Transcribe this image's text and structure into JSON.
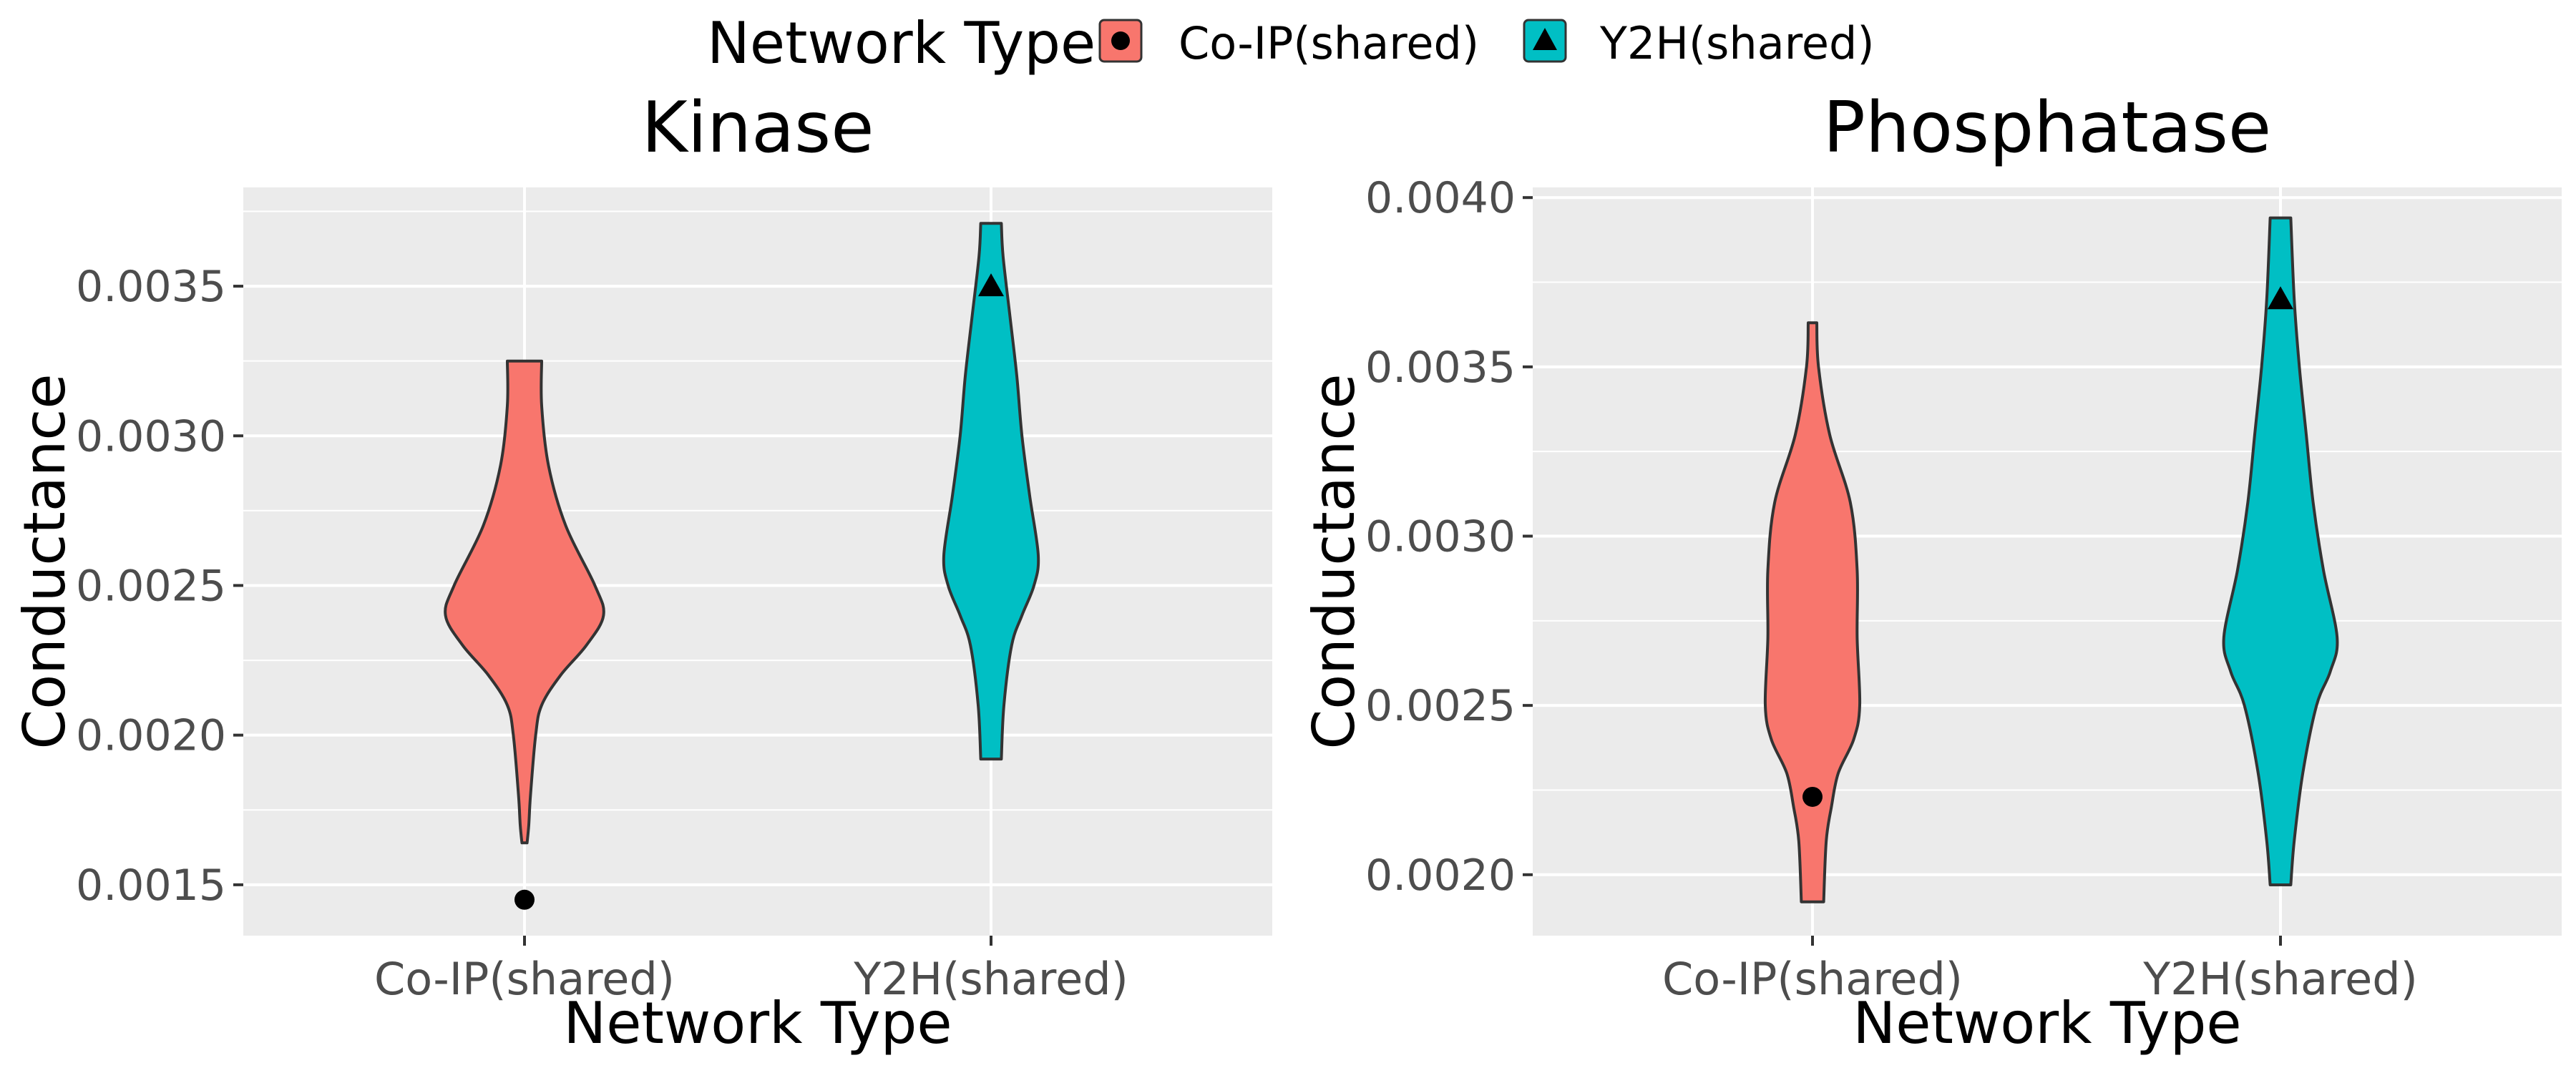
{
  "legend": {
    "title": "Network Type",
    "items": [
      {
        "label": "Co-IP(shared)",
        "fill": "#F8766D",
        "marker": "circle"
      },
      {
        "label": "Y2H(shared)",
        "fill": "#00BFC4",
        "marker": "triangle"
      }
    ]
  },
  "colors": {
    "coip": "#F8766D",
    "y2h": "#00BFC4",
    "panel_bg": "#EBEBEB",
    "grid": "#FFFFFF",
    "outline": "#333333"
  },
  "chart_data": [
    {
      "type": "violin",
      "title": "Kinase",
      "xlabel": "Network Type",
      "ylabel": "Conductance",
      "categories": [
        "Co-IP(shared)",
        "Y2H(shared)"
      ],
      "ylim": [
        0.00133,
        0.00383
      ],
      "yticks": [
        "0.0015",
        "0.0020",
        "0.0025",
        "0.0030",
        "0.0035"
      ],
      "grid": true,
      "series": [
        {
          "category": "Co-IP(shared)",
          "color": "#F8766D",
          "min": 0.00164,
          "max": 0.00325,
          "profile": [
            [
              0.00325,
              0.2
            ],
            [
              0.0031,
              0.2
            ],
            [
              0.0029,
              0.28
            ],
            [
              0.0027,
              0.48
            ],
            [
              0.0025,
              0.82
            ],
            [
              0.0024,
              0.92
            ],
            [
              0.0023,
              0.72
            ],
            [
              0.0022,
              0.42
            ],
            [
              0.0021,
              0.2
            ],
            [
              0.002,
              0.13
            ],
            [
              0.0018,
              0.07
            ],
            [
              0.0017,
              0.05
            ],
            [
              0.00164,
              0.03
            ]
          ],
          "marker": {
            "shape": "circle",
            "value": 0.00145
          }
        },
        {
          "category": "Y2H(shared)",
          "color": "#00BFC4",
          "min": 0.00192,
          "max": 0.00371,
          "profile": [
            [
              0.00371,
              0.12
            ],
            [
              0.0036,
              0.14
            ],
            [
              0.0034,
              0.22
            ],
            [
              0.0032,
              0.3
            ],
            [
              0.003,
              0.36
            ],
            [
              0.0028,
              0.45
            ],
            [
              0.0026,
              0.55
            ],
            [
              0.0025,
              0.5
            ],
            [
              0.0024,
              0.36
            ],
            [
              0.0023,
              0.24
            ],
            [
              0.0021,
              0.15
            ],
            [
              0.00192,
              0.12
            ]
          ],
          "marker": {
            "shape": "triangle",
            "value": 0.0035
          }
        }
      ]
    },
    {
      "type": "violin",
      "title": "Phosphatase",
      "xlabel": "Network Type",
      "ylabel": "Conductance",
      "categories": [
        "Co-IP(shared)",
        "Y2H(shared)"
      ],
      "ylim": [
        0.00182,
        0.00403
      ],
      "yticks": [
        "0.0020",
        "0.0025",
        "0.0030",
        "0.0035",
        "0.0040"
      ],
      "grid": true,
      "series": [
        {
          "category": "Co-IP(shared)",
          "color": "#F8766D",
          "min": 0.00192,
          "max": 0.00363,
          "profile": [
            [
              0.00363,
              0.05
            ],
            [
              0.0035,
              0.07
            ],
            [
              0.0033,
              0.2
            ],
            [
              0.0031,
              0.44
            ],
            [
              0.0029,
              0.52
            ],
            [
              0.0027,
              0.52
            ],
            [
              0.0025,
              0.55
            ],
            [
              0.0024,
              0.48
            ],
            [
              0.0023,
              0.3
            ],
            [
              0.0022,
              0.22
            ],
            [
              0.0021,
              0.16
            ],
            [
              0.00192,
              0.13
            ]
          ],
          "marker": {
            "shape": "circle",
            "value": 0.00223
          }
        },
        {
          "category": "Y2H(shared)",
          "color": "#00BFC4",
          "min": 0.00197,
          "max": 0.00394,
          "profile": [
            [
              0.00394,
              0.12
            ],
            [
              0.0037,
              0.16
            ],
            [
              0.0035,
              0.22
            ],
            [
              0.0033,
              0.3
            ],
            [
              0.0031,
              0.38
            ],
            [
              0.0029,
              0.5
            ],
            [
              0.0027,
              0.66
            ],
            [
              0.0026,
              0.58
            ],
            [
              0.0025,
              0.42
            ],
            [
              0.0023,
              0.26
            ],
            [
              0.0021,
              0.16
            ],
            [
              0.00197,
              0.12
            ]
          ],
          "marker": {
            "shape": "triangle",
            "value": 0.0037
          }
        }
      ]
    }
  ]
}
